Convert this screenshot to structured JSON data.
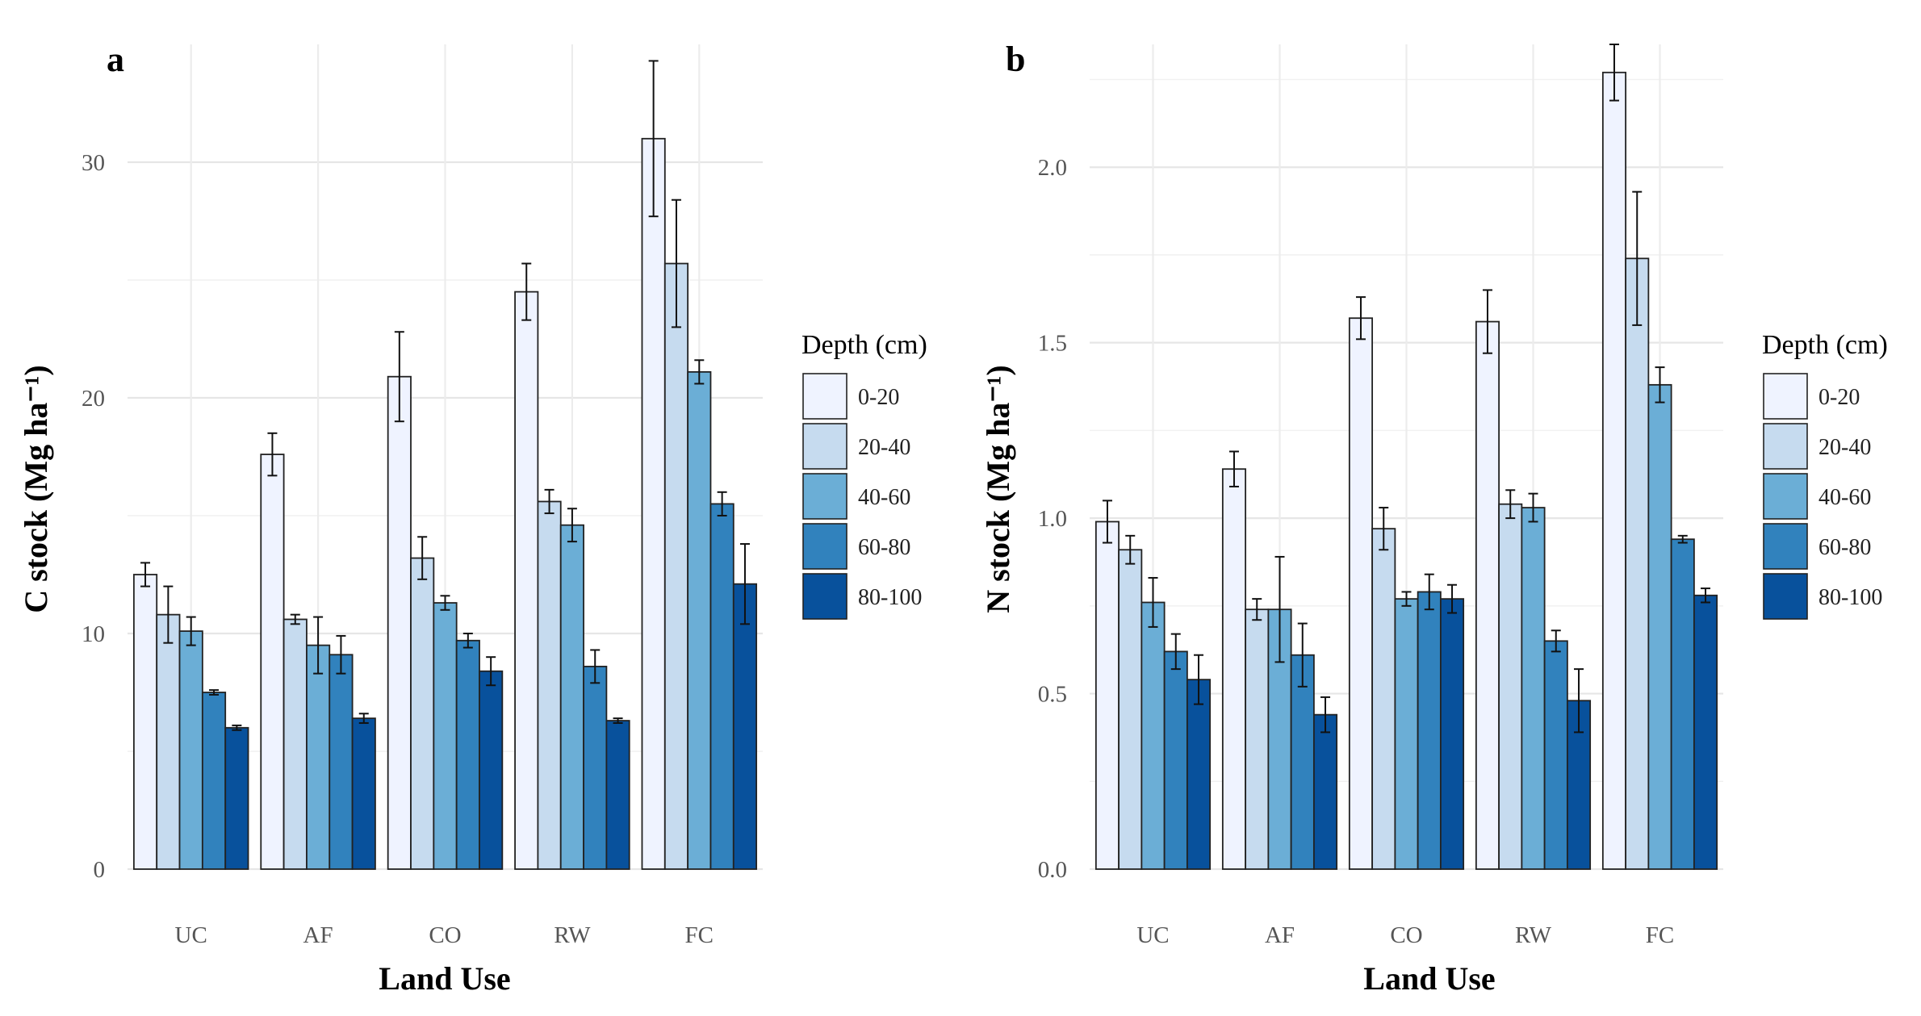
{
  "chart_data": [
    {
      "panel": "a",
      "type": "bar",
      "xlabel": "Land Use",
      "ylabel": "C stock (Mg ha⁻¹)",
      "ylim": [
        0,
        35
      ],
      "yticks": [
        "0",
        "10",
        "20",
        "30"
      ],
      "ytick_values": [
        0,
        10,
        20,
        30
      ],
      "categories": [
        "UC",
        "AF",
        "CO",
        "RW",
        "FC"
      ],
      "legend_title": "Depth (cm)",
      "legend_position": "right",
      "grid": true,
      "series": [
        {
          "name": "0-20",
          "color": "#eff3ff",
          "values": [
            12.5,
            17.6,
            20.9,
            24.5,
            31.0
          ],
          "errors": [
            0.5,
            0.9,
            1.9,
            1.2,
            3.3
          ]
        },
        {
          "name": "20-40",
          "color": "#c6dbef",
          "values": [
            10.8,
            10.6,
            13.2,
            15.6,
            25.7
          ],
          "errors": [
            1.2,
            0.2,
            0.9,
            0.5,
            2.7
          ]
        },
        {
          "name": "40-60",
          "color": "#6baed6",
          "values": [
            10.1,
            9.5,
            11.3,
            14.6,
            21.1
          ],
          "errors": [
            0.6,
            1.2,
            0.3,
            0.7,
            0.5
          ]
        },
        {
          "name": "60-80",
          "color": "#3182bd",
          "values": [
            7.5,
            9.1,
            9.7,
            8.6,
            15.5
          ],
          "errors": [
            0.1,
            0.8,
            0.3,
            0.7,
            0.5
          ]
        },
        {
          "name": "80-100",
          "color": "#08519c",
          "values": [
            6.0,
            6.4,
            8.4,
            6.3,
            12.1
          ],
          "errors": [
            0.1,
            0.2,
            0.6,
            0.1,
            1.7
          ]
        }
      ]
    },
    {
      "panel": "b",
      "type": "bar",
      "xlabel": "Land Use",
      "ylabel": "N stock (Mg ha⁻¹)",
      "ylim": [
        0,
        2.35
      ],
      "yticks": [
        "0.0",
        "0.5",
        "1.0",
        "1.5",
        "2.0"
      ],
      "ytick_values": [
        0,
        0.5,
        1.0,
        1.5,
        2.0
      ],
      "categories": [
        "UC",
        "AF",
        "CO",
        "RW",
        "FC"
      ],
      "legend_title": "Depth (cm)",
      "legend_position": "right",
      "grid": true,
      "series": [
        {
          "name": "0-20",
          "color": "#eff3ff",
          "values": [
            0.99,
            1.14,
            1.57,
            1.56,
            2.27
          ],
          "errors": [
            0.06,
            0.05,
            0.06,
            0.09,
            0.08
          ]
        },
        {
          "name": "20-40",
          "color": "#c6dbef",
          "values": [
            0.91,
            0.74,
            0.97,
            1.04,
            1.74
          ],
          "errors": [
            0.04,
            0.03,
            0.06,
            0.04,
            0.19
          ]
        },
        {
          "name": "40-60",
          "color": "#6baed6",
          "values": [
            0.76,
            0.74,
            0.77,
            1.03,
            1.38
          ],
          "errors": [
            0.07,
            0.15,
            0.02,
            0.04,
            0.05
          ]
        },
        {
          "name": "60-80",
          "color": "#3182bd",
          "values": [
            0.62,
            0.61,
            0.79,
            0.65,
            0.94
          ],
          "errors": [
            0.05,
            0.09,
            0.05,
            0.03,
            0.01
          ]
        },
        {
          "name": "80-100",
          "color": "#08519c",
          "values": [
            0.54,
            0.44,
            0.77,
            0.48,
            0.78
          ],
          "errors": [
            0.07,
            0.05,
            0.04,
            0.09,
            0.02
          ]
        }
      ]
    }
  ]
}
